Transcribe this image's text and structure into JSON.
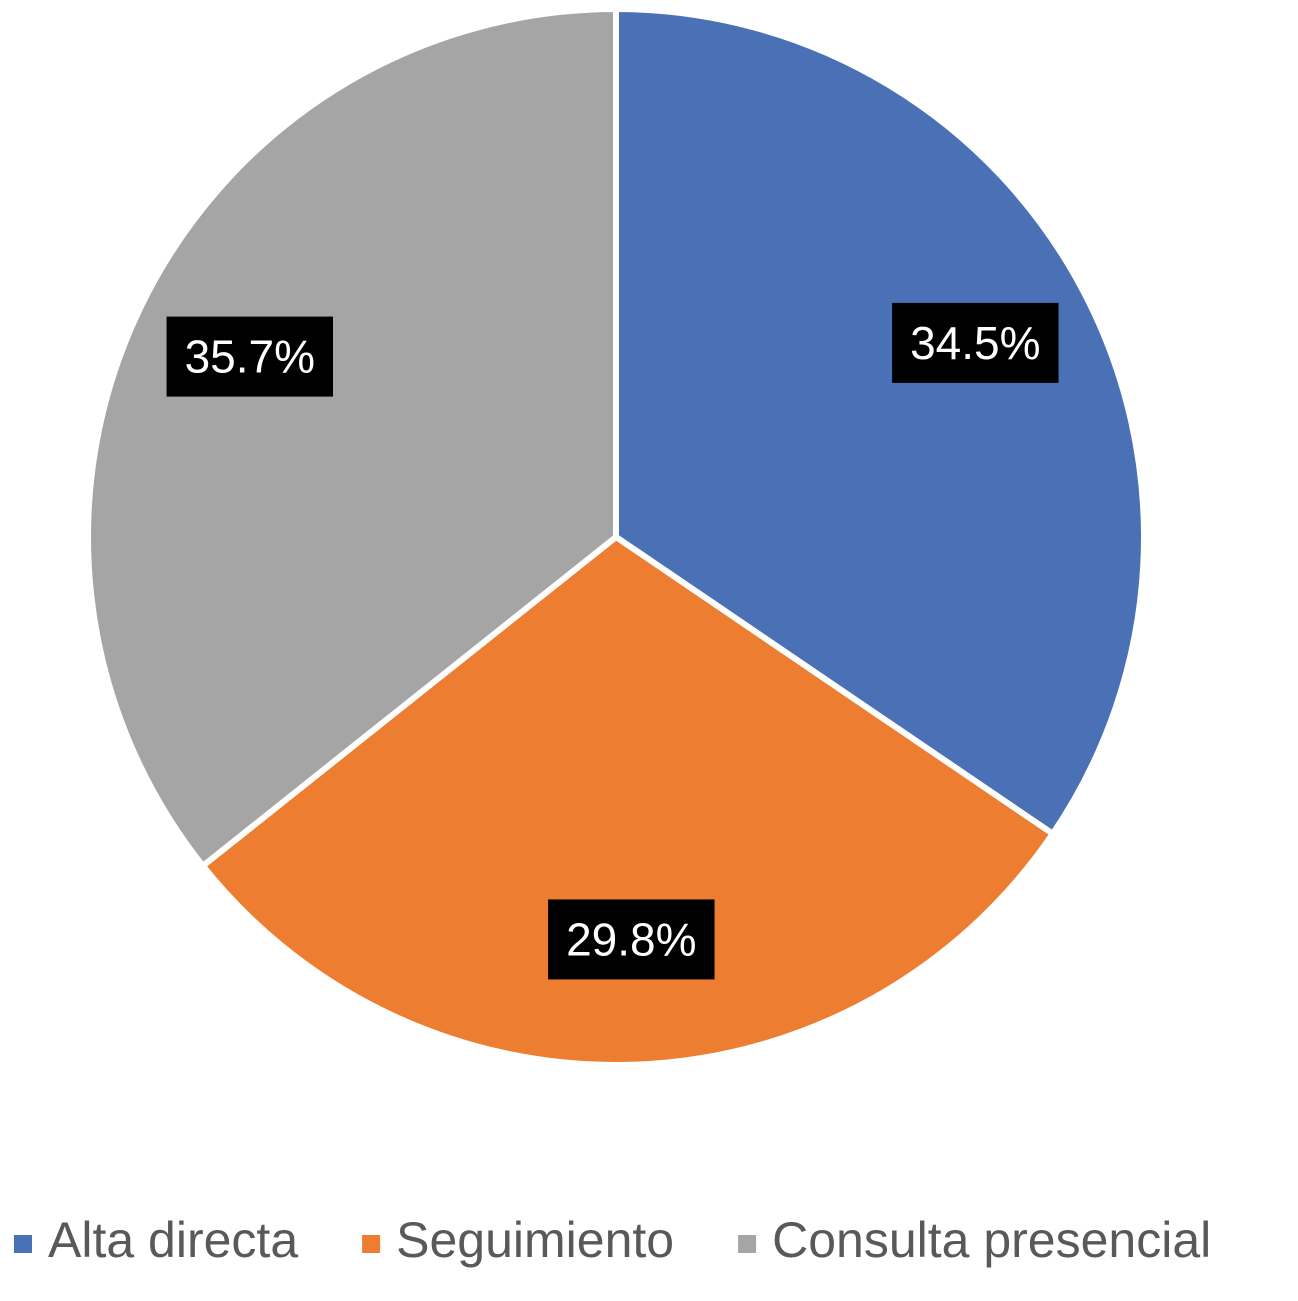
{
  "chart_data": {
    "type": "pie",
    "categories": [
      "Alta directa",
      "Seguimiento",
      "Consulta presencial"
    ],
    "values": [
      34.5,
      29.8,
      35.7
    ],
    "value_labels": [
      "34.5%",
      "29.8%",
      "35.7%"
    ],
    "colors": [
      "#4a71b5",
      "#ed7d31",
      "#a5a5a5"
    ],
    "legend": "bottom"
  }
}
